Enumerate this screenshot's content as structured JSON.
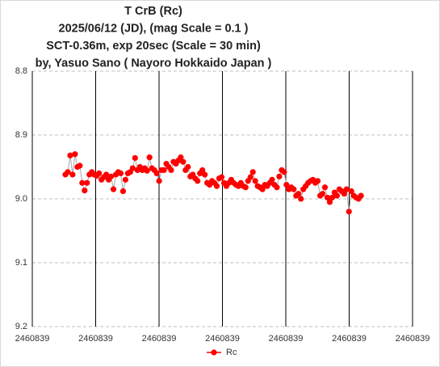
{
  "chart_data": {
    "type": "scatter-line",
    "title": [
      "T CrB  (Rc)",
      "2025/06/12 (JD),   (mag Scale = 0.1 )",
      "SCT-0.36m, exp 20sec (Scale = 30 min)",
      "by, Yasuo Sano ( Nayoro Hokkaido Japan )"
    ],
    "xlim": [
      2460839,
      2460839.125
    ],
    "xticks": [
      2460839,
      {
        "value": 2460839.020833,
        "label": "2460839"
      },
      {
        "value": 2460839.041667,
        "label": "2460839"
      },
      {
        "value": 2460839.0625,
        "label": "2460839"
      },
      {
        "value": 2460839.083333,
        "label": "2460839"
      },
      {
        "value": 2460839.104167,
        "label": "2460839"
      },
      {
        "value": 2460839.125,
        "label": "2460839"
      }
    ],
    "ylim": [
      8.8,
      9.2
    ],
    "y_reversed": true,
    "yticks": [
      8.8,
      8.9,
      {
        "value": 9,
        "label": "9.0"
      },
      9.1,
      9.2
    ],
    "grid": true,
    "legend": "bottom",
    "x": [
      2460839.01088,
      2460839.01167,
      2460839.01246,
      2460839.01325,
      2460839.01404,
      2460839.01483,
      2460839.01562,
      2460839.01641,
      2460839.0172,
      2460839.01799,
      2460839.01878,
      2460839.01957,
      2460839.02036,
      2460839.02115,
      2460839.02194,
      2460839.02273,
      2460839.02352,
      2460839.02431,
      2460839.0251,
      2460839.02589,
      2460839.02668,
      2460839.02747,
      2460839.02826,
      2460839.02905,
      2460839.02984,
      2460839.03063,
      2460839.03142,
      2460839.03221,
      2460839.033,
      2460839.03379,
      2460839.03458,
      2460839.03537,
      2460839.03616,
      2460839.03695,
      2460839.03774,
      2460839.03853,
      2460839.03932,
      2460839.04011,
      2460839.0409,
      2460839.04169,
      2460839.04248,
      2460839.04327,
      2460839.04406,
      2460839.04485,
      2460839.04564,
      2460839.04643,
      2460839.04722,
      2460839.04801,
      2460839.0488,
      2460839.04959,
      2460839.05038,
      2460839.05117,
      2460839.05196,
      2460839.05275,
      2460839.05354,
      2460839.05433,
      2460839.05512,
      2460839.05591,
      2460839.0567,
      2460839.05749,
      2460839.05828,
      2460839.05907,
      2460839.05986,
      2460839.06065,
      2460839.06144,
      2460839.06223,
      2460839.06302,
      2460839.06381,
      2460839.0646,
      2460839.06539,
      2460839.06618,
      2460839.06697,
      2460839.06776,
      2460839.06855,
      2460839.06934,
      2460839.07013,
      2460839.07092,
      2460839.07171,
      2460839.0725,
      2460839.07329,
      2460839.07408,
      2460839.07487,
      2460839.07566,
      2460839.07645,
      2460839.07724,
      2460839.07803,
      2460839.07882,
      2460839.07961,
      2460839.0804,
      2460839.08119,
      2460839.08198,
      2460839.08277,
      2460839.08356,
      2460839.08435,
      2460839.08514,
      2460839.08593,
      2460839.08672,
      2460839.08751,
      2460839.0883,
      2460839.08909,
      2460839.08988,
      2460839.09067,
      2460839.09146,
      2460839.09225,
      2460839.09304,
      2460839.09383,
      2460839.09462,
      2460839.09541,
      2460839.0962,
      2460839.09699,
      2460839.09778,
      2460839.09857,
      2460839.09936,
      2460839.10015,
      2460839.10094,
      2460839.10173,
      2460839.10252,
      2460839.10331,
      2460839.1041,
      2460839.10489,
      2460839.10568,
      2460839.10647,
      2460839.10726,
      2460839.10805
    ],
    "series": [
      {
        "name": "Rc",
        "color": "#ff0000",
        "values": [
          8.962,
          8.958,
          8.932,
          8.962,
          8.93,
          8.95,
          8.948,
          8.975,
          8.987,
          8.975,
          8.962,
          8.958,
          8.962,
          8.964,
          8.96,
          8.97,
          8.966,
          8.962,
          8.97,
          8.965,
          8.985,
          8.962,
          8.958,
          8.96,
          8.988,
          8.97,
          8.96,
          8.958,
          8.952,
          8.936,
          8.955,
          8.95,
          8.955,
          8.952,
          8.956,
          8.935,
          8.952,
          8.955,
          8.96,
          8.972,
          8.955,
          8.955,
          8.945,
          8.95,
          8.955,
          8.942,
          8.945,
          8.94,
          8.935,
          8.942,
          8.955,
          8.95,
          8.965,
          8.962,
          8.968,
          8.972,
          8.96,
          8.955,
          8.962,
          8.975,
          8.978,
          8.972,
          8.975,
          8.98,
          8.968,
          8.966,
          8.975,
          8.98,
          8.975,
          8.97,
          8.975,
          8.978,
          8.98,
          8.975,
          8.98,
          8.982,
          8.972,
          8.966,
          8.958,
          8.972,
          8.98,
          8.982,
          8.985,
          8.978,
          8.98,
          8.975,
          8.97,
          8.978,
          8.982,
          8.965,
          8.955,
          8.958,
          8.978,
          8.985,
          8.982,
          8.985,
          8.995,
          8.992,
          9.0,
          8.985,
          8.98,
          8.975,
          8.972,
          8.97,
          8.975,
          8.972,
          8.995,
          8.992,
          8.982,
          8.998,
          9.005,
          8.998,
          8.99,
          8.995,
          8.985,
          8.988,
          8.992,
          8.985,
          9.02,
          8.988,
          8.995,
          8.998,
          9.0,
          8.995
        ]
      }
    ]
  }
}
